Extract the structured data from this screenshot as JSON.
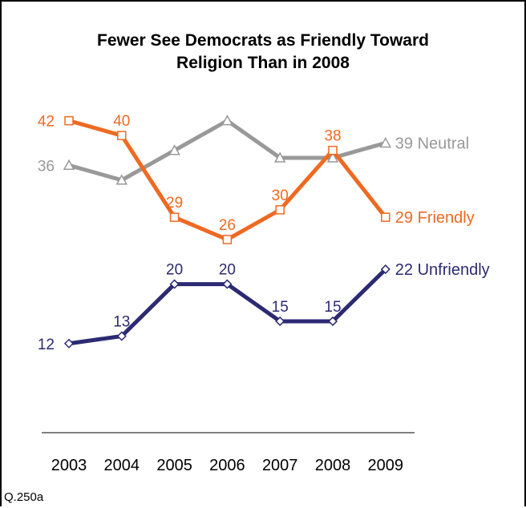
{
  "chart_data": {
    "type": "line",
    "title_lines": [
      "Fewer See Democrats as Friendly Toward",
      "Religion Than in 2008"
    ],
    "categories": [
      "2003",
      "2004",
      "2005",
      "2006",
      "2007",
      "2008",
      "2009"
    ],
    "ylim": [
      0,
      48
    ],
    "grid": false,
    "series": [
      {
        "name": "Neutral",
        "values": [
          36,
          34,
          38,
          42,
          37,
          37,
          39
        ],
        "color": "#999999",
        "marker": "triangle",
        "show_labels": [
          true,
          false,
          false,
          false,
          false,
          false,
          true
        ]
      },
      {
        "name": "Friendly",
        "values": [
          42,
          40,
          29,
          26,
          30,
          38,
          29
        ],
        "color": "#ee6a22",
        "marker": "square",
        "show_labels": [
          true,
          true,
          true,
          true,
          true,
          true,
          true
        ]
      },
      {
        "name": "Unfriendly",
        "values": [
          12,
          13,
          20,
          20,
          15,
          15,
          22
        ],
        "color": "#2b2a72",
        "marker": "diamond",
        "show_labels": [
          true,
          true,
          true,
          true,
          true,
          true,
          true
        ]
      }
    ]
  },
  "footnote": "Q.250a"
}
